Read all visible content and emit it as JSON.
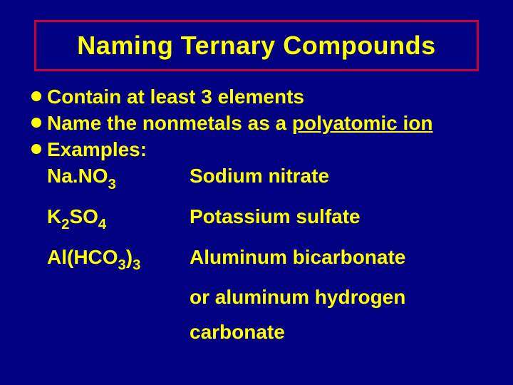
{
  "slide": {
    "background_color": "#000080",
    "title_border_color": "#cc0033",
    "text_color": "#ffff00",
    "title": "Naming Ternary Compounds",
    "title_fontsize": 36,
    "body_fontsize": 28,
    "bullets": [
      {
        "text": "Contain at least 3 elements"
      },
      {
        "prefix": "Name the nonmetals as a ",
        "underlined": "polyatomic ion"
      },
      {
        "text": "Examples:"
      }
    ],
    "examples": [
      {
        "formula_html": "Na.NO<sub>3</sub>",
        "formula_plain": "Na.NO3",
        "name": "Sodium nitrate"
      },
      {
        "formula_html": "K<sub>2</sub>SO<sub>4</sub>",
        "formula_plain": "K2SO4",
        "name": "Potassium sulfate"
      },
      {
        "formula_html": "Al(HCO<sub>3</sub>)<sub>3</sub>",
        "formula_plain": "Al(HCO3)3",
        "name": "Aluminum bicarbonate"
      }
    ],
    "continuation_lines": [
      "or aluminum hydrogen",
      "carbonate"
    ]
  }
}
